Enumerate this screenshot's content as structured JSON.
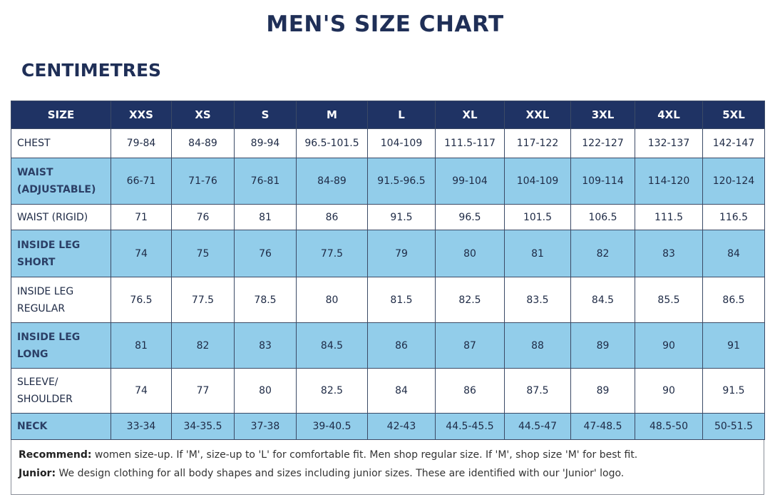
{
  "title": "MEN'S SIZE CHART",
  "subtitle": "CENTIMETRES",
  "table": {
    "header": [
      "SIZE",
      "XXS",
      "XS",
      "S",
      "M",
      "L",
      "XL",
      "XXL",
      "3XL",
      "4XL",
      "5XL"
    ],
    "rows": [
      {
        "label": "CHEST",
        "values": [
          "79-84",
          "84-89",
          "89-94",
          "96.5-101.5",
          "104-109",
          "111.5-117",
          "117-122",
          "122-127",
          "132-137",
          "142-147"
        ]
      },
      {
        "label": "WAIST (ADJUSTABLE)",
        "values": [
          "66-71",
          "71-76",
          "76-81",
          "84-89",
          "91.5-96.5",
          "99-104",
          "104-109",
          "109-114",
          "114-120",
          "120-124"
        ]
      },
      {
        "label": "WAIST (RIGID)",
        "values": [
          "71",
          "76",
          "81",
          "86",
          "91.5",
          "96.5",
          "101.5",
          "106.5",
          "111.5",
          "116.5"
        ]
      },
      {
        "label": "INSIDE LEG SHORT",
        "values": [
          "74",
          "75",
          "76",
          "77.5",
          "79",
          "80",
          "81",
          "82",
          "83",
          "84"
        ]
      },
      {
        "label": "INSIDE LEG REGULAR",
        "values": [
          "76.5",
          "77.5",
          "78.5",
          "80",
          "81.5",
          "82.5",
          "83.5",
          "84.5",
          "85.5",
          "86.5"
        ]
      },
      {
        "label": "INSIDE LEG LONG",
        "values": [
          "81",
          "82",
          "83",
          "84.5",
          "86",
          "87",
          "88",
          "89",
          "90",
          "91"
        ]
      },
      {
        "label": "SLEEVE/ SHOULDER",
        "values": [
          "74",
          "77",
          "80",
          "82.5",
          "84",
          "86",
          "87.5",
          "89",
          "90",
          "91.5"
        ]
      },
      {
        "label": "NECK",
        "values": [
          "33-34",
          "34-35.5",
          "37-38",
          "39-40.5",
          "42-43",
          "44.5-45.5",
          "44.5-47",
          "47-48.5",
          "48.5-50",
          "50-51.5"
        ]
      }
    ]
  },
  "notes": [
    {
      "label": "Recommend:",
      "text": "women size-up. If 'M', size-up to 'L' for comfortable fit. Men shop regular size. If 'M', shop size 'M' for best fit."
    },
    {
      "label": "Junior:",
      "text": "We design clothing for all body shapes and sizes including junior sizes. These are identified with our 'Junior' logo."
    }
  ]
}
